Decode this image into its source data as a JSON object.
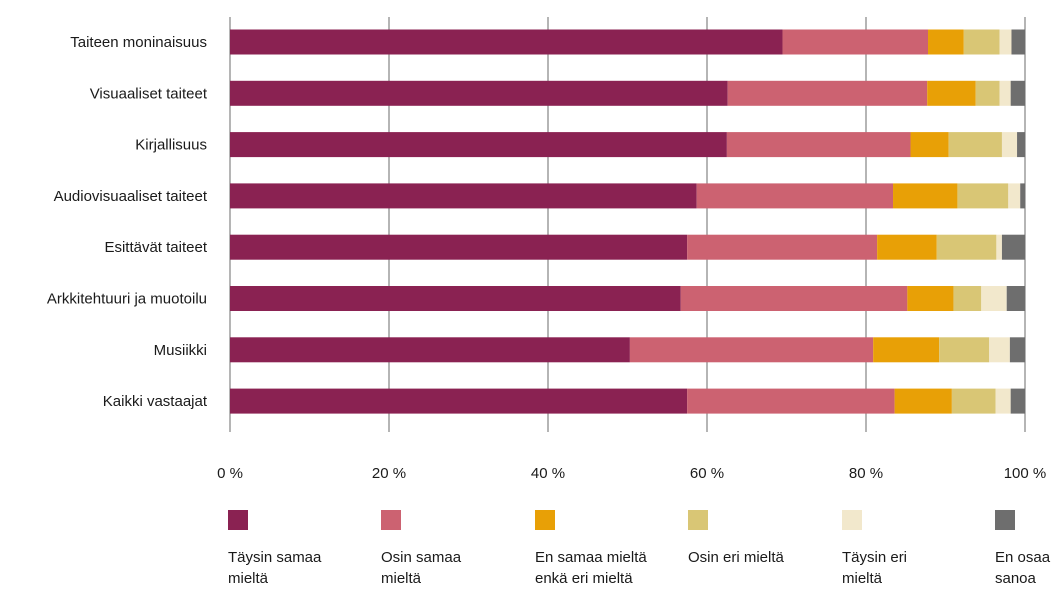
{
  "chart_data": {
    "type": "bar",
    "orientation": "horizontal",
    "stacked": true,
    "percent": true,
    "categories": [
      "Taiteen moninaisuus",
      "Visuaaliset taiteet",
      "Kirjallisuus",
      "Audiovisuaaliset taiteet",
      "Esittävät taiteet",
      "Arkkitehtuuri ja muotoilu",
      "Musiikki",
      "Kaikki vastaajat"
    ],
    "series": [
      {
        "name": "Täysin samaa\nmieltä",
        "color": "#8a2252",
        "values": [
          69.5,
          62.6,
          62.5,
          58.7,
          57.5,
          56.7,
          50.3,
          57.5
        ]
      },
      {
        "name": "Osin samaa\nmieltä",
        "color": "#cc6271",
        "values": [
          18.3,
          25.1,
          23.1,
          24.7,
          23.9,
          28.5,
          30.6,
          26.1
        ]
      },
      {
        "name": "En samaa mieltä\nenkä eri mieltä",
        "color": "#e8a006",
        "values": [
          4.5,
          6.1,
          4.8,
          8.1,
          7.5,
          5.8,
          8.3,
          7.2
        ]
      },
      {
        "name": "Osin eri mieltä",
        "color": "#d9c675",
        "values": [
          4.5,
          3.0,
          6.7,
          6.4,
          7.5,
          3.5,
          6.3,
          5.5
        ]
      },
      {
        "name": "Täysin eri\nmieltä",
        "color": "#f2e8cc",
        "values": [
          1.5,
          1.4,
          1.9,
          1.5,
          0.7,
          3.2,
          2.6,
          1.9
        ]
      },
      {
        "name": "En osaa\nsanoa",
        "color": "#6e6e6e",
        "values": [
          1.7,
          1.8,
          1.0,
          0.6,
          2.9,
          2.3,
          1.9,
          1.8
        ]
      }
    ],
    "x_ticks": [
      "0 %",
      "20 %",
      "40 %",
      "60 %",
      "80 %",
      "100 %"
    ],
    "xlim": [
      0,
      100
    ],
    "grid": "vertical",
    "legend": "bottom"
  }
}
